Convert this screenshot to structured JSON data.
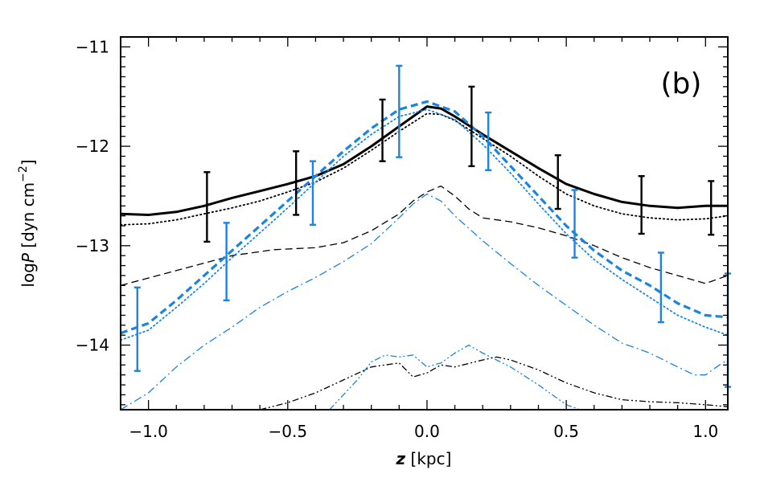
{
  "chart_data": {
    "type": "line",
    "panel_label": "(b)",
    "xlabel": {
      "symbol": "z",
      "unit": " [kpc]"
    },
    "ylabel": {
      "prefix": "log",
      "symbol": "P",
      "unit": " [dyn cm",
      "exp": "−2",
      "close": "]"
    },
    "xlim": [
      -1.1,
      1.08
    ],
    "ylim": [
      -14.65,
      -10.9
    ],
    "xticks": [
      -1.0,
      -0.5,
      0.0,
      0.5,
      1.0
    ],
    "xtick_labels": [
      "−1.0",
      "−0.5",
      "0.0",
      "0.5",
      "1.0"
    ],
    "yticks": [
      -11,
      -12,
      -13,
      -14
    ],
    "ytick_labels": [
      "−11",
      "−12",
      "−13",
      "−14"
    ],
    "colors": {
      "black": "#000000",
      "blue": "#1b84e0"
    },
    "series": [
      {
        "name": "black-solid-total",
        "color": "#000000",
        "style": "solid",
        "width": 3,
        "x": [
          -1.1,
          -1.0,
          -0.9,
          -0.8,
          -0.7,
          -0.6,
          -0.5,
          -0.4,
          -0.3,
          -0.2,
          -0.1,
          0.0,
          0.05,
          0.1,
          0.2,
          0.3,
          0.4,
          0.5,
          0.6,
          0.7,
          0.8,
          0.9,
          1.0,
          1.08
        ],
        "y": [
          -12.68,
          -12.69,
          -12.66,
          -12.6,
          -12.52,
          -12.45,
          -12.38,
          -12.3,
          -12.18,
          -12.0,
          -11.8,
          -11.6,
          -11.62,
          -11.7,
          -11.88,
          -12.05,
          -12.22,
          -12.38,
          -12.48,
          -12.56,
          -12.6,
          -12.62,
          -12.6,
          -12.6
        ]
      },
      {
        "name": "black-dotted",
        "color": "#000000",
        "style": "dotted",
        "width": 1.8,
        "x": [
          -1.1,
          -1.0,
          -0.9,
          -0.8,
          -0.7,
          -0.6,
          -0.5,
          -0.4,
          -0.3,
          -0.2,
          -0.1,
          0.0,
          0.05,
          0.1,
          0.2,
          0.3,
          0.4,
          0.5,
          0.6,
          0.7,
          0.8,
          0.9,
          1.0,
          1.08
        ],
        "y": [
          -12.79,
          -12.78,
          -12.74,
          -12.68,
          -12.62,
          -12.55,
          -12.46,
          -12.36,
          -12.22,
          -12.04,
          -11.85,
          -11.67,
          -11.68,
          -11.74,
          -11.92,
          -12.1,
          -12.3,
          -12.48,
          -12.6,
          -12.68,
          -12.72,
          -12.74,
          -12.73,
          -12.7
        ]
      },
      {
        "name": "black-dashed",
        "color": "#000000",
        "style": "dashed",
        "width": 1.3,
        "x": [
          -1.1,
          -0.9,
          -0.7,
          -0.55,
          -0.4,
          -0.3,
          -0.2,
          -0.1,
          -0.05,
          0.0,
          0.05,
          0.1,
          0.15,
          0.2,
          0.3,
          0.4,
          0.5,
          0.6,
          0.7,
          0.8,
          0.9,
          1.0,
          1.08
        ],
        "y": [
          -13.4,
          -13.25,
          -13.1,
          -13.04,
          -13.02,
          -12.97,
          -12.85,
          -12.68,
          -12.55,
          -12.46,
          -12.4,
          -12.5,
          -12.63,
          -12.72,
          -12.76,
          -12.82,
          -12.9,
          -13.0,
          -13.12,
          -13.22,
          -13.3,
          -13.38,
          -13.3
        ]
      },
      {
        "name": "blue-dashed-thick",
        "color": "#1b84e0",
        "style": "dashed",
        "width": 3.2,
        "x": [
          -1.1,
          -1.0,
          -0.9,
          -0.8,
          -0.7,
          -0.6,
          -0.5,
          -0.4,
          -0.3,
          -0.2,
          -0.1,
          0.0,
          0.1,
          0.2,
          0.3,
          0.4,
          0.5,
          0.6,
          0.7,
          0.8,
          0.9,
          1.0,
          1.08
        ],
        "y": [
          -13.88,
          -13.78,
          -13.55,
          -13.3,
          -13.05,
          -12.8,
          -12.55,
          -12.3,
          -12.05,
          -11.82,
          -11.63,
          -11.55,
          -11.65,
          -11.9,
          -12.2,
          -12.5,
          -12.8,
          -13.05,
          -13.25,
          -13.4,
          -13.58,
          -13.7,
          -13.72
        ]
      },
      {
        "name": "blue-dotted",
        "color": "#1b84e0",
        "style": "dotted",
        "width": 1.8,
        "x": [
          -1.1,
          -1.0,
          -0.9,
          -0.8,
          -0.7,
          -0.6,
          -0.5,
          -0.4,
          -0.3,
          -0.2,
          -0.1,
          0.0,
          0.1,
          0.2,
          0.3,
          0.4,
          0.5,
          0.6,
          0.7,
          0.8,
          0.9,
          1.0,
          1.08
        ],
        "y": [
          -13.95,
          -13.85,
          -13.62,
          -13.38,
          -13.12,
          -12.87,
          -12.62,
          -12.36,
          -12.1,
          -11.88,
          -11.7,
          -11.63,
          -11.73,
          -11.98,
          -12.27,
          -12.58,
          -12.88,
          -13.14,
          -13.34,
          -13.52,
          -13.7,
          -13.82,
          -13.9
        ]
      },
      {
        "name": "blue-dash-dot",
        "color": "#1b84e0",
        "style": "dashdot",
        "width": 1.3,
        "x": [
          -1.1,
          -1.0,
          -0.9,
          -0.8,
          -0.7,
          -0.6,
          -0.5,
          -0.4,
          -0.3,
          -0.2,
          -0.1,
          -0.05,
          0.0,
          0.05,
          0.1,
          0.2,
          0.3,
          0.4,
          0.5,
          0.6,
          0.7,
          0.8,
          0.9,
          0.96,
          1.0,
          1.05,
          1.08
        ],
        "y": [
          -14.65,
          -14.48,
          -14.22,
          -14.0,
          -13.82,
          -13.62,
          -13.46,
          -13.32,
          -13.16,
          -12.98,
          -12.72,
          -12.58,
          -12.48,
          -12.55,
          -12.7,
          -12.95,
          -13.18,
          -13.4,
          -13.6,
          -13.8,
          -13.98,
          -14.08,
          -14.22,
          -14.3,
          -14.3,
          -14.2,
          -14.15
        ]
      },
      {
        "name": "blue-dash-dot-dot",
        "color": "#1b84e0",
        "style": "dashdotdot",
        "width": 1.3,
        "x": [
          -0.35,
          -0.25,
          -0.2,
          -0.15,
          -0.1,
          -0.05,
          0.0,
          0.05,
          0.1,
          0.15,
          0.2,
          0.3,
          0.4,
          0.5,
          0.55
        ],
        "y": [
          -14.65,
          -14.35,
          -14.17,
          -14.1,
          -14.12,
          -14.1,
          -14.22,
          -14.18,
          -14.08,
          -14.0,
          -14.08,
          -14.22,
          -14.4,
          -14.6,
          -14.65
        ]
      },
      {
        "name": "black-dash-dot-dot",
        "color": "#000000",
        "style": "dashdotdot",
        "width": 1.3,
        "x": [
          -0.6,
          -0.5,
          -0.4,
          -0.3,
          -0.2,
          -0.1,
          -0.05,
          0.0,
          0.05,
          0.1,
          0.2,
          0.25,
          0.3,
          0.4,
          0.5,
          0.6,
          0.7,
          0.8,
          0.9,
          1.0,
          1.08
        ],
        "y": [
          -14.65,
          -14.58,
          -14.48,
          -14.35,
          -14.22,
          -14.18,
          -14.32,
          -14.28,
          -14.2,
          -14.22,
          -14.15,
          -14.12,
          -14.15,
          -14.25,
          -14.38,
          -14.48,
          -14.55,
          -14.57,
          -14.58,
          -14.6,
          -14.62
        ]
      }
    ],
    "errorbars": [
      {
        "name": "black-errorbars",
        "color": "#000000",
        "width": 2.4,
        "points": [
          {
            "x": -0.79,
            "y": -12.61,
            "err": 0.35
          },
          {
            "x": -0.47,
            "y": -12.37,
            "err": 0.32
          },
          {
            "x": -0.16,
            "y": -11.84,
            "err": 0.31
          },
          {
            "x": 0.16,
            "y": -11.8,
            "err": 0.4
          },
          {
            "x": 0.47,
            "y": -12.36,
            "err": 0.27
          },
          {
            "x": 0.77,
            "y": -12.59,
            "err": 0.29
          },
          {
            "x": 1.02,
            "y": -12.62,
            "err": 0.27
          }
        ]
      },
      {
        "name": "blue-errorbars",
        "color": "#1b84e0",
        "width": 2.4,
        "points": [
          {
            "x": -1.04,
            "y": -13.84,
            "err": 0.42
          },
          {
            "x": -0.72,
            "y": -13.16,
            "err": 0.39
          },
          {
            "x": -0.41,
            "y": -12.47,
            "err": 0.32
          },
          {
            "x": -0.1,
            "y": -11.65,
            "err": 0.46
          },
          {
            "x": 0.22,
            "y": -11.95,
            "err": 0.29
          },
          {
            "x": 0.53,
            "y": -12.78,
            "err": 0.34
          },
          {
            "x": 0.84,
            "y": -13.42,
            "err": 0.35
          },
          {
            "x": 1.08,
            "y": -13.85,
            "err": 0.57
          }
        ]
      }
    ]
  }
}
